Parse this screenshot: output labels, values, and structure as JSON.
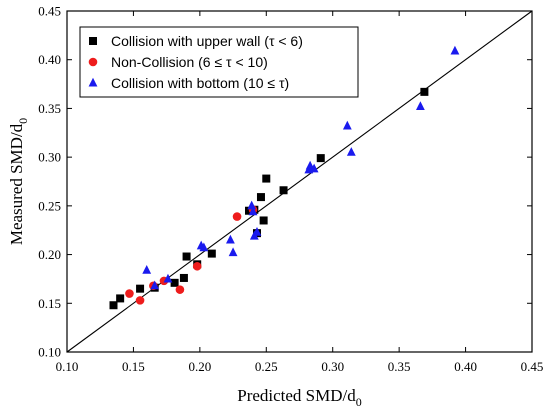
{
  "chart_data": {
    "type": "scatter",
    "xlabel": "Predicted SMD/d",
    "xlabel_sub": "0",
    "ylabel": "Measured SMD/d",
    "ylabel_sub": "0",
    "xlim": [
      0.1,
      0.45
    ],
    "ylim": [
      0.1,
      0.45
    ],
    "x_ticks": [
      "0.10",
      "0.15",
      "0.20",
      "0.25",
      "0.30",
      "0.35",
      "0.40",
      "0.45"
    ],
    "y_ticks": [
      "0.10",
      "0.15",
      "0.20",
      "0.25",
      "0.30",
      "0.35",
      "0.40",
      "0.45"
    ],
    "grid": false,
    "legend_position": "top-left",
    "reference_line": {
      "from": [
        0.1,
        0.1
      ],
      "to": [
        0.45,
        0.45
      ],
      "color": "#000000"
    },
    "series": [
      {
        "name": "Collision with upper wall (τ < 6)",
        "marker": "square",
        "color": "#000000",
        "points": [
          [
            0.135,
            0.148
          ],
          [
            0.14,
            0.155
          ],
          [
            0.155,
            0.165
          ],
          [
            0.166,
            0.166
          ],
          [
            0.181,
            0.171
          ],
          [
            0.188,
            0.176
          ],
          [
            0.19,
            0.198
          ],
          [
            0.198,
            0.19
          ],
          [
            0.209,
            0.201
          ],
          [
            0.237,
            0.245
          ],
          [
            0.241,
            0.246
          ],
          [
            0.243,
            0.222
          ],
          [
            0.246,
            0.259
          ],
          [
            0.248,
            0.235
          ],
          [
            0.25,
            0.278
          ],
          [
            0.263,
            0.266
          ],
          [
            0.291,
            0.299
          ],
          [
            0.369,
            0.367
          ]
        ]
      },
      {
        "name": "Non-Collision (6  ≤ τ < 10)",
        "marker": "circle",
        "color": "#ee1c1c",
        "points": [
          [
            0.147,
            0.16
          ],
          [
            0.155,
            0.153
          ],
          [
            0.165,
            0.168
          ],
          [
            0.173,
            0.173
          ],
          [
            0.185,
            0.164
          ],
          [
            0.198,
            0.188
          ],
          [
            0.228,
            0.239
          ],
          [
            0.24,
            0.246
          ]
        ]
      },
      {
        "name": "Collision with bottom (10 ≤ τ)",
        "marker": "triangle",
        "color": "#1a1aee",
        "points": [
          [
            0.16,
            0.184
          ],
          [
            0.166,
            0.168
          ],
          [
            0.176,
            0.175
          ],
          [
            0.201,
            0.209
          ],
          [
            0.203,
            0.207
          ],
          [
            0.223,
            0.215
          ],
          [
            0.225,
            0.202
          ],
          [
            0.239,
            0.25
          ],
          [
            0.24,
            0.244
          ],
          [
            0.241,
            0.219
          ],
          [
            0.243,
            0.223
          ],
          [
            0.282,
            0.287
          ],
          [
            0.283,
            0.291
          ],
          [
            0.286,
            0.288
          ],
          [
            0.311,
            0.332
          ],
          [
            0.314,
            0.305
          ],
          [
            0.366,
            0.352
          ],
          [
            0.392,
            0.409
          ]
        ]
      }
    ]
  }
}
